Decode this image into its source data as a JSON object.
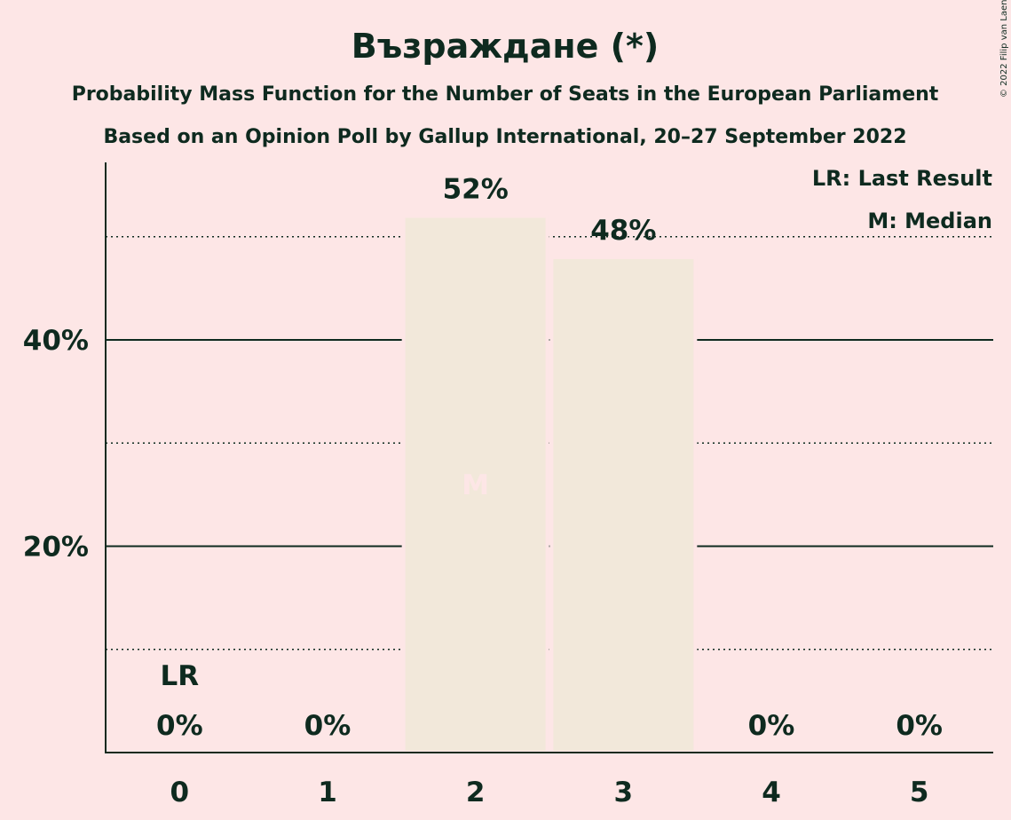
{
  "title": "Възраждане (*)",
  "subtitle_1": "Probability Mass Function for the Number of Seats in the European Parliament",
  "subtitle_2": "Based on an Opinion Poll by Gallup International, 20–27 September 2022",
  "copyright": "© 2022 Filip van Laenen",
  "legend": {
    "last_result": "LR: Last Result",
    "median": "M: Median"
  },
  "colors": {
    "background": "#FDE6E6",
    "bar": "#F2E8DA",
    "text": "#0E2A1F",
    "median_text": "#FDE6E6"
  },
  "chart_data": {
    "type": "bar",
    "categories": [
      "0",
      "1",
      "2",
      "3",
      "4",
      "5"
    ],
    "values": [
      0,
      0,
      52,
      48,
      0,
      0
    ],
    "value_labels": [
      "0%",
      "0%",
      "52%",
      "48%",
      "0%",
      "0%"
    ],
    "ylim": [
      0,
      57
    ],
    "y_ticks": [
      {
        "value": 20,
        "label": "20%"
      },
      {
        "value": 40,
        "label": "40%"
      }
    ],
    "minor_gridlines": [
      10,
      30,
      50
    ],
    "last_result": {
      "category": "0",
      "label": "LR"
    },
    "median": {
      "category": "2",
      "label": "M"
    },
    "xlabel": "",
    "ylabel": ""
  }
}
